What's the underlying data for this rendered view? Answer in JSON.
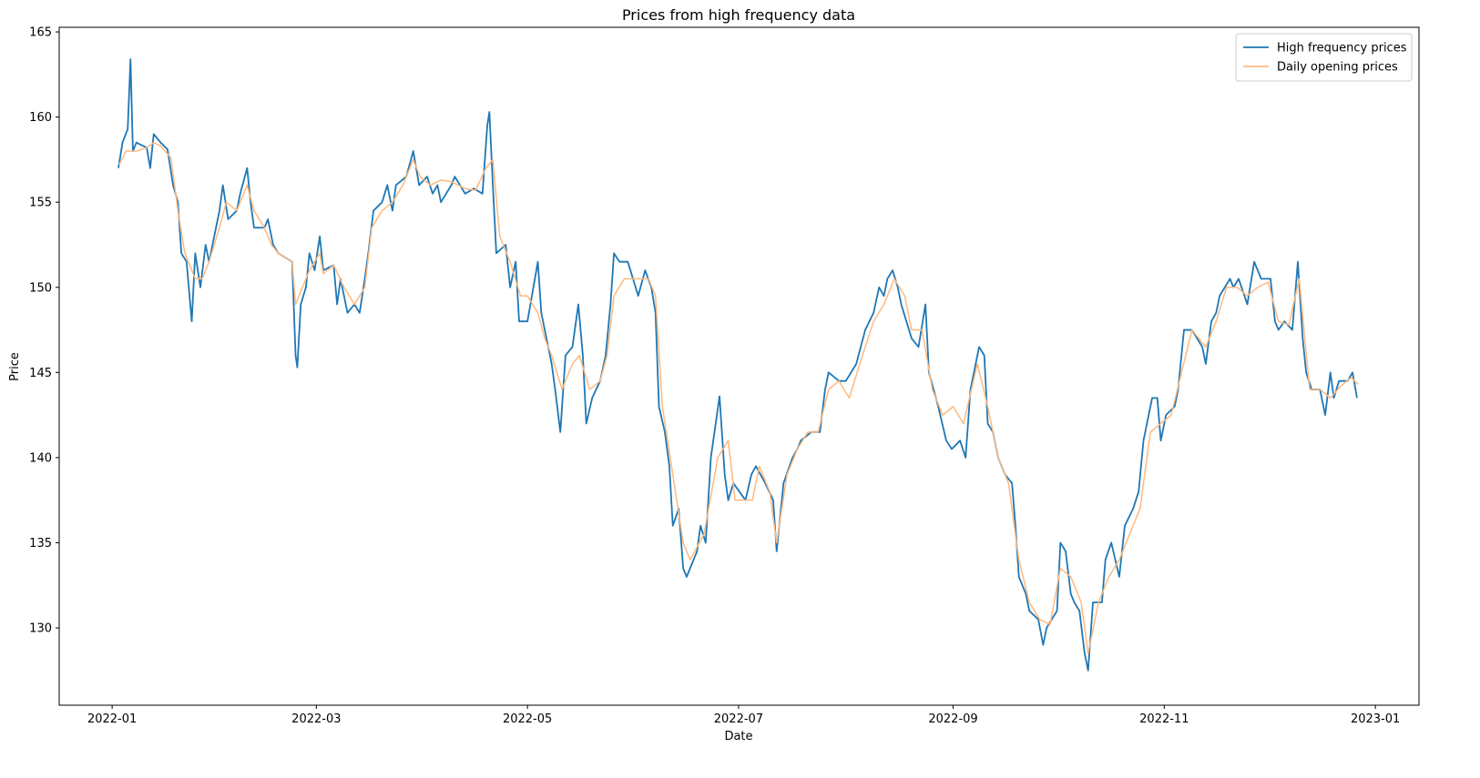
{
  "chart_data": {
    "type": "line",
    "title": "Prices from high frequency data",
    "x_label": "Date",
    "y_label": "Price",
    "xlim": [
      -15.3,
      377.6
    ],
    "ylim": [
      125.46,
      165.27
    ],
    "xticks": [
      {
        "value": 0,
        "label": "2022-01"
      },
      {
        "value": 59,
        "label": "2022-03"
      },
      {
        "value": 120,
        "label": "2022-05"
      },
      {
        "value": 181,
        "label": "2022-07"
      },
      {
        "value": 243,
        "label": "2022-09"
      },
      {
        "value": 304,
        "label": "2022-11"
      },
      {
        "value": 365,
        "label": "2023-01"
      }
    ],
    "yticks": [
      130,
      135,
      140,
      145,
      150,
      155,
      160,
      165
    ],
    "grid": false,
    "legend": "upper right",
    "series": [
      {
        "name": "High frequency prices",
        "color": "#1f77b4",
        "x": [
          1.8,
          3,
          4.5,
          5.3,
          6,
          7,
          10,
          11,
          12,
          14,
          16,
          17.6,
          19,
          20,
          21.5,
          23,
          24,
          25.5,
          27,
          28,
          29.5,
          31,
          32,
          33.5,
          36,
          37,
          39,
          40,
          41,
          44,
          45,
          46.5,
          48,
          52,
          53,
          53.5,
          54.5,
          56,
          57,
          58.5,
          60,
          61,
          64,
          65,
          66,
          68,
          70,
          71.5,
          73,
          74,
          75.5,
          78,
          79.5,
          81,
          82,
          85,
          87,
          88.7,
          91,
          92.6,
          94,
          95,
          98,
          99,
          102,
          104.5,
          107,
          108.4,
          109,
          110,
          111,
          113.7,
          115,
          116.6,
          117.6,
          120,
          123,
          124,
          125.5,
          127,
          128,
          129.5,
          131,
          133,
          134.7,
          136,
          137,
          138.7,
          141,
          142.6,
          144,
          145,
          146.6,
          149,
          150.5,
          152,
          154,
          155.8,
          157,
          158,
          159.7,
          161,
          162,
          163.7,
          165,
          166,
          169,
          170,
          171.5,
          173,
          175.5,
          177,
          178,
          179.5,
          183,
          184.7,
          186,
          188.7,
          191,
          192,
          194,
          196.6,
          198,
          199,
          202,
          204.5,
          206,
          207,
          210,
          212,
          215,
          217.6,
          220,
          221.6,
          223,
          224,
          225.5,
          227,
          228,
          231,
          233,
          235,
          236,
          238.7,
          241,
          242.6,
          245,
          246.6,
          248,
          250.5,
          252,
          253,
          254.5,
          256,
          258,
          260,
          261,
          262,
          264,
          265,
          267.6,
          269,
          270,
          273,
          274,
          275.5,
          277,
          278,
          279.5,
          281,
          282,
          283.4,
          286,
          287,
          288.7,
          291,
          292.6,
          295,
          296.6,
          298,
          299,
          300.5,
          302,
          303,
          304.5,
          307,
          308,
          309.7,
          312,
          315,
          316,
          317.6,
          319,
          320,
          323,
          324,
          325.5,
          328,
          330,
          332,
          334.7,
          336,
          337,
          338.7,
          341,
          342.6,
          344,
          345,
          346.6,
          349,
          350.5,
          352,
          353,
          354.5,
          357,
          358.4,
          359.7
        ],
        "values": [
          157,
          158.5,
          159.3,
          163.4,
          158,
          158.5,
          158.2,
          157,
          159,
          158.5,
          158.1,
          156,
          155,
          152,
          151.5,
          148,
          152,
          150,
          152.5,
          151.5,
          153,
          154.5,
          156,
          154,
          154.5,
          155.5,
          157,
          155,
          153.5,
          153.5,
          154,
          152.5,
          152,
          151.5,
          146,
          145.3,
          149,
          150,
          152,
          151,
          153,
          151,
          151.3,
          149,
          150.5,
          148.5,
          149,
          148.5,
          150.5,
          152,
          154.5,
          155,
          156,
          154.5,
          156,
          156.5,
          158,
          156,
          156.5,
          155.5,
          156,
          155,
          156,
          156.5,
          155.5,
          155.8,
          155.5,
          159.5,
          160.3,
          156,
          152,
          152.5,
          150,
          151.5,
          148,
          148,
          151.5,
          148.5,
          147,
          145.5,
          144,
          141.5,
          146,
          146.5,
          149,
          146,
          142,
          143.5,
          144.5,
          146,
          149,
          152,
          151.5,
          151.5,
          150.5,
          149.5,
          151,
          150,
          148.5,
          143,
          141.5,
          139.5,
          136,
          137,
          133.5,
          133,
          134.5,
          136,
          135,
          140,
          143.6,
          139,
          137.5,
          138.5,
          137.5,
          139,
          139.5,
          138.5,
          137.5,
          134.5,
          138.5,
          140,
          140.5,
          141,
          141.5,
          141.5,
          144,
          145,
          144.5,
          144.5,
          145.5,
          147.5,
          148.5,
          150,
          149.5,
          150.5,
          151,
          150,
          149,
          147,
          146.5,
          149,
          145,
          143,
          141,
          140.5,
          141,
          140,
          144,
          146.5,
          146,
          142,
          141.5,
          140,
          139,
          138.5,
          136,
          133,
          132,
          131,
          130.5,
          129,
          130,
          131,
          135,
          134.5,
          132,
          131.5,
          131,
          128.5,
          127.5,
          131.5,
          131.5,
          134,
          135,
          133,
          136,
          137,
          138,
          141,
          142,
          143.5,
          143.5,
          141,
          142.5,
          143,
          144,
          147.5,
          147.5,
          146.5,
          145.5,
          148,
          148.5,
          149.5,
          150.5,
          150,
          150.5,
          149,
          151.5,
          150.5,
          150.5,
          148,
          147.5,
          148,
          147.5,
          151.5,
          147,
          145,
          144,
          144,
          142.5,
          145,
          143.5,
          144.5,
          144.5,
          145,
          143.5
        ]
      },
      {
        "name": "Daily opening prices",
        "color": "#ffb97f",
        "x": [
          2,
          4,
          7,
          10,
          12,
          14,
          17,
          19,
          21,
          24,
          26,
          28,
          31,
          33,
          36,
          39,
          41,
          44,
          46,
          48,
          52,
          53,
          55,
          57,
          60,
          61,
          64,
          67,
          70,
          73,
          75,
          78,
          81,
          84,
          87,
          89,
          92,
          95,
          98,
          102,
          105,
          108,
          110,
          112,
          115,
          118,
          120,
          123,
          125,
          127,
          130,
          133,
          135,
          138,
          141,
          143,
          145,
          148,
          152,
          155,
          157,
          159,
          162,
          165,
          167,
          171,
          175,
          178,
          180,
          185,
          187,
          190,
          192,
          195,
          198,
          201,
          204,
          207,
          210,
          213,
          216,
          220,
          223,
          226,
          229,
          231,
          234,
          237,
          240,
          243,
          246,
          250,
          253,
          256,
          259,
          262,
          265,
          268,
          271,
          274,
          277,
          280,
          282,
          285,
          288,
          291,
          294,
          297,
          300,
          303,
          306,
          309,
          312,
          316,
          319,
          322,
          325,
          328,
          331,
          334,
          337,
          340,
          343,
          346,
          349,
          352,
          355,
          358,
          360
        ],
        "values": [
          157.2,
          158,
          158,
          158.2,
          158.5,
          158.3,
          157.6,
          154.5,
          152,
          150.5,
          150.5,
          151.5,
          153.5,
          155,
          154.5,
          156,
          154.5,
          153.5,
          152.5,
          152,
          151.5,
          149,
          150,
          151,
          152,
          150.8,
          151.3,
          150,
          149,
          150,
          153.5,
          154.5,
          155,
          156,
          157.5,
          156.5,
          156,
          156.3,
          156.2,
          155.8,
          155.7,
          157,
          157.5,
          153,
          151.5,
          149.5,
          149.5,
          148.5,
          147,
          146,
          144,
          145.5,
          146,
          144,
          144.5,
          146,
          149.5,
          150.5,
          150.5,
          150.5,
          149.5,
          143,
          139,
          135,
          134,
          135.5,
          140,
          141,
          137.5,
          137.5,
          139.5,
          138,
          135,
          139,
          140.5,
          141.5,
          141.5,
          144,
          144.5,
          143.5,
          145.5,
          148,
          149,
          150.5,
          149.5,
          147.5,
          147.5,
          144,
          142.5,
          143,
          142,
          145.5,
          143,
          140,
          138.5,
          134,
          131.5,
          130.5,
          130.2,
          133.5,
          133,
          131.5,
          128.5,
          131.5,
          133,
          134,
          135.5,
          137,
          141.5,
          142,
          142.5,
          145,
          147.5,
          146.5,
          148,
          150,
          150,
          149.5,
          150,
          150.3,
          148,
          147.8,
          150.5,
          144,
          144,
          143.5,
          144.2,
          144.7,
          144.3
        ]
      }
    ]
  }
}
